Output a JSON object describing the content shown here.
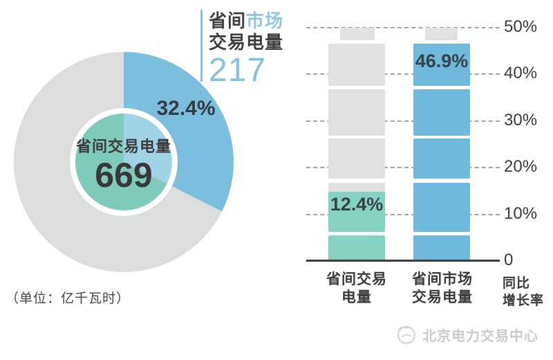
{
  "unit_note": "（单位：亿千瓦时）",
  "watermark": {
    "text": "北京电力交易中心"
  },
  "colors": {
    "pie_blue": "#7cbedd",
    "pie_gray": "#dcdddd",
    "inner_blue": "#a0d3e6",
    "inner_teal": "#7ecbbb",
    "bar_blue": "#6eb9dc",
    "bar_teal": "#85d2c3",
    "block_gray": "#e1e1e1",
    "accent_blue_text": "#84c2e0",
    "dark_text": "#3a3a3a",
    "grid_gray": "#a3a3a3",
    "watermark_gray": "#cbcbcb"
  },
  "chart_data": [
    {
      "type": "pie",
      "title": "省间市场交易电量",
      "unit": "亿千瓦时",
      "center_label": "省间交易电量",
      "center_value": "669",
      "share_label": "32.4%",
      "callout": {
        "prefix": "省间",
        "highlight": "市场",
        "line2": "交易电量",
        "value": "217"
      },
      "series": [
        {
          "name": "省间市场交易电量",
          "value": 217,
          "share_pct": 32.4
        },
        {
          "name": "",
          "value": 452,
          "share_pct": 67.6
        }
      ]
    },
    {
      "type": "bar",
      "categories": [
        "省间交易电量",
        "省间市场交易电量"
      ],
      "cat_lines": [
        [
          "省间交易",
          "电量"
        ],
        [
          "省间市场",
          "交易电量"
        ]
      ],
      "values": [
        12.4,
        46.9
      ],
      "value_labels": [
        "12.4%",
        "46.9%"
      ],
      "ylabel": "同比增长率",
      "ylabel_lines": [
        "同比",
        "增长率"
      ],
      "ylim": [
        0,
        50
      ],
      "grid": "dashed",
      "legend": "none",
      "y_ticks": [
        {
          "label": "50%",
          "value": 50
        },
        {
          "label": "40%",
          "value": 40
        },
        {
          "label": "30%",
          "value": 30
        },
        {
          "label": "20%",
          "value": 20
        },
        {
          "label": "10%",
          "value": 10
        },
        {
          "label": "0",
          "value": 0
        }
      ]
    }
  ]
}
